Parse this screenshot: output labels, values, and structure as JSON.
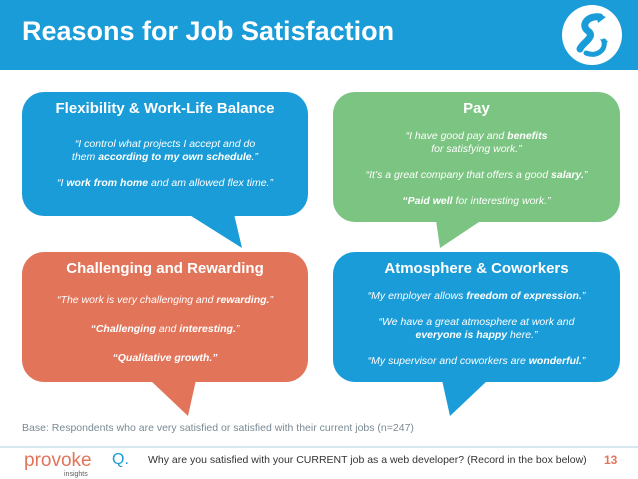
{
  "header": {
    "title": "Reasons for Job Satisfaction"
  },
  "colors": {
    "blue": "#1a9cd8",
    "green": "#7cc482",
    "orange": "#e2745a"
  },
  "bubbles": {
    "flexibility": {
      "title": "Flexibility & Work-Life Balance",
      "q1_a": "“I control what projects I accept and do",
      "q1_b": "them ",
      "q1_c": "according to my own schedule",
      "q1_d": ".”",
      "q2_a": "“I ",
      "q2_b": "work from home",
      "q2_c": " and am allowed flex time.”"
    },
    "pay": {
      "title": "Pay",
      "q1_a": "“I have good pay and ",
      "q1_b": "benefits",
      "q1_c": "for satisfying work.”",
      "q2_a": "“It’s a great company that offers a good ",
      "q2_b": "salary.",
      "q2_c": "”",
      "q3_a": "“Paid well",
      "q3_b": " for interesting work.”"
    },
    "challenging": {
      "title": "Challenging and Rewarding",
      "q1_a": "“The work is very challenging and ",
      "q1_b": "rewarding.",
      "q1_c": "”",
      "q2_a": "“Challenging",
      "q2_b": " and ",
      "q2_c": "interesting.",
      "q2_d": "”",
      "q3": "“Qualitative growth.”"
    },
    "atmosphere": {
      "title": "Atmosphere & Coworkers",
      "q1_a": "“My employer allows ",
      "q1_b": "freedom of expression.",
      "q1_c": "”",
      "q2_a": "“We have a great atmosphere at work and",
      "q2_b": "everyone is happy",
      "q2_c": " here.”",
      "q3_a": "“My supervisor and coworkers are ",
      "q3_b": "wonderful.",
      "q3_c": "”"
    }
  },
  "footer": {
    "base_note": "Base: Respondents who are very satisfied or satisfied with their current jobs (n=247)",
    "brand_main": "provoke",
    "brand_sub": "insights",
    "q_label": "Q.",
    "question": "Why are you satisfied with your CURRENT job as a web developer?  (Record in the box below)",
    "page_number": "13"
  }
}
